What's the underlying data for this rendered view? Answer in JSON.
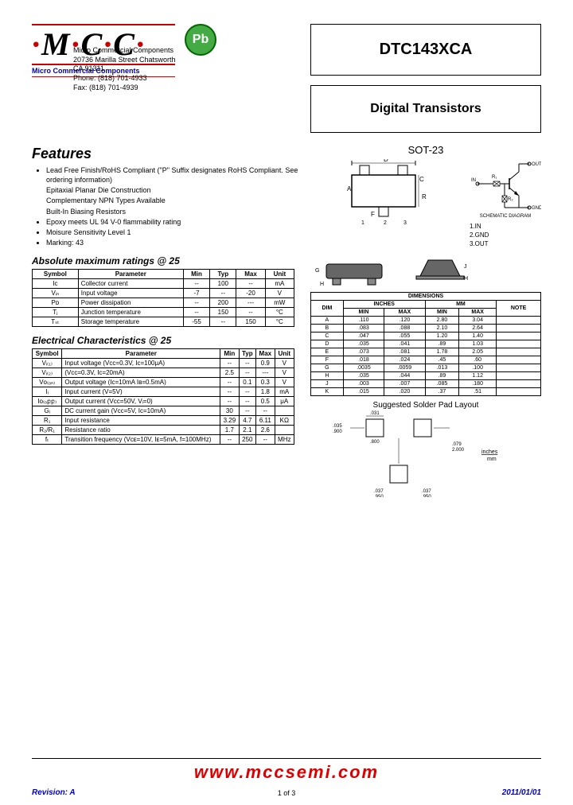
{
  "logo": {
    "text_m": "M",
    "text_c1": "C",
    "text_c2": "C",
    "subtitle": "Micro Commercial Components"
  },
  "pb": "Pb",
  "company": {
    "name": "Micro Commercial Components",
    "addr1": "20736 Marilla Street Chatsworth",
    "addr2": "CA 91311",
    "phone": "Phone: (818) 701-4933",
    "fax": "Fax:      (818) 701-4939"
  },
  "part_number": "DTC143XCA",
  "product_type": "Digital Transistors",
  "features_title": "Features",
  "features": [
    "Lead Free Finish/RoHS Compliant (\"P\" Suffix designates RoHS Compliant.  See ordering information)",
    "Epitaxial Planar Die Construction",
    "Complementary  NPN Types Available",
    "Built-In Biasing Resistors",
    "Epoxy meets UL 94 V-0 flammability rating",
    "Moisure Sensitivity Level 1",
    "Marking: 43"
  ],
  "abs_title": "Absolute maximum ratings @ 25",
  "abs_headers": [
    "Symbol",
    "Parameter",
    "Min",
    "Typ",
    "Max",
    "Unit"
  ],
  "abs_rows": [
    [
      "Iᴄ",
      "Collector current",
      "--",
      "100",
      "--",
      "mA"
    ],
    [
      "Vᵢₙ",
      "Input voltage",
      "-7",
      "--",
      "-20",
      "V"
    ],
    [
      "Pᴅ",
      "Power dissipation",
      "--",
      "200",
      "---",
      "mW"
    ],
    [
      "Tⱼ",
      "Junction temperature",
      "--",
      "150",
      "--",
      "°C"
    ],
    [
      "Tₛₜ",
      "Storage temperature",
      "-55",
      "--",
      "150",
      "°C"
    ]
  ],
  "elec_title": "Electrical Characteristics @ 25",
  "elec_headers": [
    "Symbol",
    "Parameter",
    "Min",
    "Typ",
    "Max",
    "Unit"
  ],
  "elec_rows": [
    [
      "Vᵢ₍₁₎",
      "Input voltage (Vᴄᴄ=0.3V, Iᴄ=100μA)",
      "--",
      "--",
      "0.9",
      "V"
    ],
    [
      "Vᵢ₍₂₎",
      "(Vᴄᴄ=0.3V, Iᴄ=20mA)",
      "2.5",
      "--",
      "---",
      "V"
    ],
    [
      "Vᴏ₍ₒₙ₎",
      "Output voltage (Iᴄ=10mA Iʙ=0.5mA)",
      "--",
      "0.1",
      "0.3",
      "V"
    ],
    [
      "Iᵢ",
      "Input current (V=5V)",
      "--",
      "--",
      "1.8",
      "mA"
    ],
    [
      "Iᴏ₍ₒբբ₎",
      "Output current (Vᴄᴄ=50V, Vᵢ=0)",
      "--",
      "--",
      "0.5",
      "μA"
    ],
    [
      "Gᵢ",
      "DC current gain (Vᴄᴄ=5V, Iᴄ=10mA)",
      "30",
      "--",
      "--",
      ""
    ],
    [
      "R₁",
      "Input resistance",
      "3.29",
      "4.7",
      "6.11",
      "KΩ"
    ],
    [
      "R₂/R₁",
      "Resistance ratio",
      "1.7",
      "2.1",
      "2.6",
      ""
    ],
    [
      "fₜ",
      "Transition frequency (Vᴄᴇ=10V, Iᴇ=5mA, f=100MHz)",
      "--",
      "250",
      "--",
      "MHz"
    ]
  ],
  "package": "SOT-23",
  "pins": {
    "p1": "1.IN",
    "p2": "2.GND",
    "p3": "3.OUT"
  },
  "schematic_label": "SCHEMATIC DIAGRAM",
  "dim_title": "DIMENSIONS",
  "dim_headers_top": [
    "DIM",
    "INCHES",
    "MM",
    "NOTE"
  ],
  "dim_headers_sub": [
    "",
    "MIN",
    "MAX",
    "MIN",
    "MAX",
    ""
  ],
  "dim_rows": [
    [
      "A",
      ".110",
      ".120",
      "2.80",
      "3.04",
      ""
    ],
    [
      "B",
      ".083",
      ".088",
      "2.10",
      "2.64",
      ""
    ],
    [
      "C",
      ".047",
      ".055",
      "1.20",
      "1.40",
      ""
    ],
    [
      "D",
      ".035",
      ".041",
      ".89",
      "1.03",
      ""
    ],
    [
      "E",
      ".073",
      ".081",
      "1.78",
      "2.05",
      ""
    ],
    [
      "F",
      ".018",
      ".024",
      ".45",
      ".60",
      ""
    ],
    [
      "G",
      ".0035",
      ".0059",
      ".013",
      ".100",
      ""
    ],
    [
      "H",
      ".035",
      ".044",
      ".89",
      "1.12",
      ""
    ],
    [
      "J",
      ".003",
      ".007",
      ".085",
      ".180",
      ""
    ],
    [
      "K",
      ".015",
      ".020",
      ".37",
      ".51",
      ""
    ]
  ],
  "pad_title": "Suggested Solder Pad Layout",
  "pad_dims": {
    "a": ".031\n.800",
    "b": ".035\n.900",
    "c": ".079\n2.000",
    "d": ".037\n.950",
    "e": ".037\n.950",
    "unit": "inches\nmm"
  },
  "footer": {
    "url": "www.mccsemi.com",
    "revision": "Revision: A",
    "page": "1 of 3",
    "date": "2011/01/01"
  },
  "colors": {
    "red": "#cc0000",
    "blue": "#0000cc",
    "green": "#44aa44"
  }
}
